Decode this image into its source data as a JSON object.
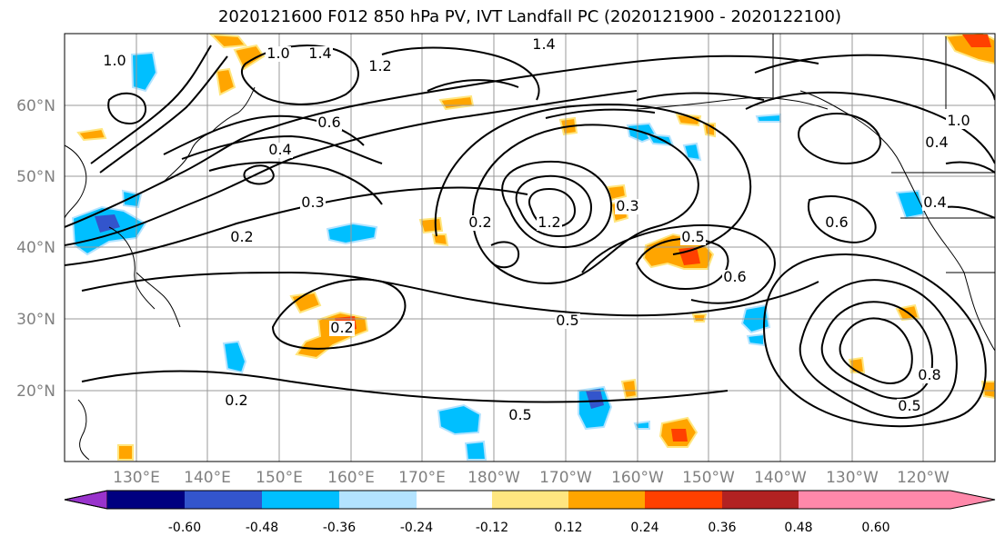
{
  "title": "2020121600 F012 850 hPa PV, IVT Landfall PC (2020121900 - 2020122100)",
  "lat_labels": [
    "60°N",
    "50°N",
    "40°N",
    "30°N",
    "20°N"
  ],
  "lon_labels": [
    "130°E",
    "140°E",
    "150°E",
    "160°E",
    "170°E",
    "180°W",
    "170°W",
    "160°W",
    "150°W",
    "140°W",
    "130°W",
    "120°W"
  ],
  "colorbar": {
    "colors": [
      "#9933cc",
      "#000080",
      "#3355cc",
      "#00bfff",
      "#b3e3ff",
      "#ffffff",
      "#ffe680",
      "#ffa500",
      "#ff4000",
      "#b22222",
      "#ff88aa"
    ],
    "tick_labels": [
      "-0.60",
      "-0.48",
      "-0.36",
      "-0.24",
      "-0.12",
      "0.12",
      "0.24",
      "0.36",
      "0.48",
      "0.60"
    ]
  },
  "contour_labels": [
    "1.0",
    "1.4",
    "1.2",
    "1.4",
    "1.0",
    "0.6",
    "0.4",
    "0.3",
    "0.2",
    "0.2",
    "0.2",
    "0.5",
    "0.3",
    "0.5",
    "0.6",
    "0.5",
    "1.0",
    "0.4",
    "0.6",
    "0.4",
    "0.8",
    "0.5",
    "0.2",
    "1.2"
  ]
}
